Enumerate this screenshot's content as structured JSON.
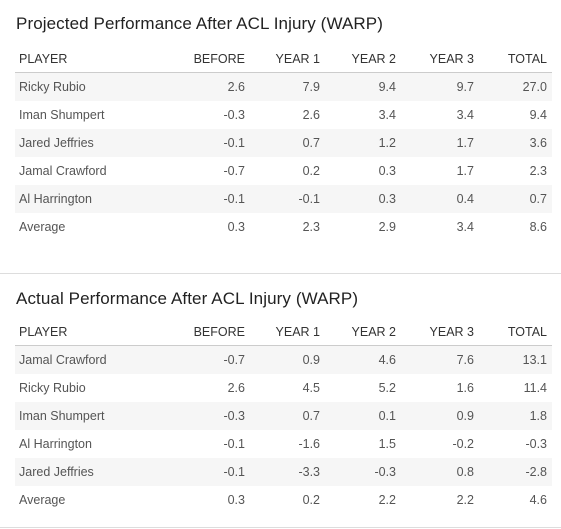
{
  "columns": [
    "PLAYER",
    "BEFORE",
    "YEAR 1",
    "YEAR 2",
    "YEAR 3",
    "TOTAL"
  ],
  "projected": {
    "title": "Projected Performance After ACL Injury (WARP)",
    "rows": [
      [
        "Ricky Rubio",
        "2.6",
        "7.9",
        "9.4",
        "9.7",
        "27.0"
      ],
      [
        "Iman Shumpert",
        "-0.3",
        "2.6",
        "3.4",
        "3.4",
        "9.4"
      ],
      [
        "Jared Jeffries",
        "-0.1",
        "0.7",
        "1.2",
        "1.7",
        "3.6"
      ],
      [
        "Jamal Crawford",
        "-0.7",
        "0.2",
        "0.3",
        "1.7",
        "2.3"
      ],
      [
        "Al Harrington",
        "-0.1",
        "-0.1",
        "0.3",
        "0.4",
        "0.7"
      ],
      [
        "Average",
        "0.3",
        "2.3",
        "2.9",
        "3.4",
        "8.6"
      ]
    ]
  },
  "actual": {
    "title": "Actual Performance After ACL Injury (WARP)",
    "rows": [
      [
        "Jamal Crawford",
        "-0.7",
        "0.9",
        "4.6",
        "7.6",
        "13.1"
      ],
      [
        "Ricky Rubio",
        "2.6",
        "4.5",
        "5.2",
        "1.6",
        "11.4"
      ],
      [
        "Iman Shumpert",
        "-0.3",
        "0.7",
        "0.1",
        "0.9",
        "1.8"
      ],
      [
        "Al Harrington",
        "-0.1",
        "-1.6",
        "1.5",
        "-0.2",
        "-0.3"
      ],
      [
        "Jared Jeffries",
        "-0.1",
        "-3.3",
        "-0.3",
        "0.8",
        "-2.8"
      ],
      [
        "Average",
        "0.3",
        "0.2",
        "2.2",
        "2.2",
        "4.6"
      ]
    ]
  }
}
